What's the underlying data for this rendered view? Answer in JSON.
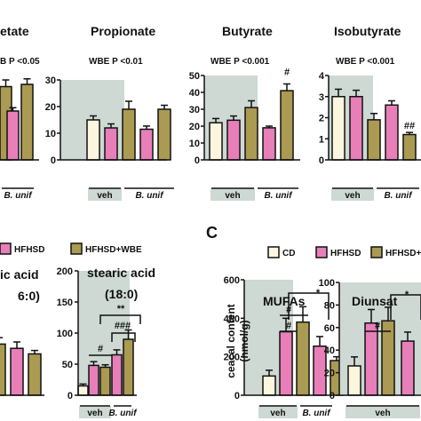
{
  "colors": {
    "CD": "#fcf6de",
    "HFHSD": "#e87fb9",
    "HFHSD+WBE": "#aa9a52",
    "shade": "#cdd9d2",
    "outline": "#111111"
  },
  "legend": {
    "items": [
      "CD",
      "HFHSD",
      "HFHSD+WBE"
    ]
  },
  "panel_c_label": "C",
  "group_labels": {
    "veh": "veh",
    "bunif": "B. unif"
  },
  "ylabel_c": {
    "line1": "ceacal content",
    "line2": "(nmol/g)"
  },
  "chart_data": [
    {
      "type": "bar",
      "title": "etate",
      "test_label": "B P <0.05",
      "ylim": [
        0,
        40
      ],
      "yticks": [],
      "categories": [
        "CD veh",
        "HFHSD veh",
        "HFHSD+WBE veh",
        "HFHSD B. unif",
        "HFHSD+WBE B. unif"
      ],
      "values": [
        32,
        30,
        33,
        22,
        34
      ],
      "errors": [
        3,
        2,
        3,
        1.5,
        2.5
      ],
      "annotations": []
    },
    {
      "type": "bar",
      "title": "Propionate",
      "test_label": "WBE P <0.01",
      "ylim": [
        0,
        30
      ],
      "yticks": [
        0,
        10,
        20,
        30
      ],
      "categories": [
        "CD veh",
        "HFHSD veh",
        "HFHSD+WBE veh",
        "HFHSD B. unif",
        "HFHSD+WBE B. unif"
      ],
      "values": [
        15,
        12,
        19,
        11.5,
        19
      ],
      "errors": [
        1.5,
        1.5,
        3,
        1.2,
        1.5
      ],
      "annotations": []
    },
    {
      "type": "bar",
      "title": "Butyrate",
      "test_label": "WBE P <0.001",
      "ylim": [
        0,
        50
      ],
      "yticks": [
        0,
        10,
        20,
        30,
        40,
        50
      ],
      "categories": [
        "CD veh",
        "HFHSD veh",
        "HFHSD+WBE veh",
        "HFHSD B. unif",
        "HFHSD+WBE B. unif"
      ],
      "values": [
        22,
        23.5,
        31,
        19,
        41
      ],
      "errors": [
        2.5,
        2.5,
        4,
        1,
        4
      ],
      "annotations": [
        {
          "bar": 4,
          "text": "#"
        }
      ]
    },
    {
      "type": "bar",
      "title": "Isobutyrate",
      "test_label": "WBE P <0.001",
      "ylim": [
        0,
        4
      ],
      "yticks": [
        0,
        1,
        2,
        3,
        4
      ],
      "categories": [
        "CD veh",
        "HFHSD veh",
        "HFHSD+WBE veh",
        "HFHSD B. unif",
        "HFHSD+WBE B. unif"
      ],
      "values": [
        3,
        3,
        1.9,
        2.6,
        1.2
      ],
      "errors": [
        0.35,
        0.3,
        0.3,
        0.2,
        0.1
      ],
      "annotations": [
        {
          "bar": 4,
          "text": "##"
        }
      ]
    },
    {
      "type": "bar",
      "title": "ic acid",
      "title2": "6:0)",
      "ylim": [
        0,
        250
      ],
      "yticks": [],
      "categories": [
        "HFHSD+WBE veh",
        "HFHSD B. unif",
        "HFHSD+WBE B. unif"
      ],
      "values": [
        120,
        110,
        97
      ],
      "errors": [
        15,
        15,
        8
      ],
      "annotations": []
    },
    {
      "type": "bar",
      "title": "stearic acid",
      "title2": "(18:0)",
      "ylim": [
        0,
        200
      ],
      "yticks": [
        0,
        50,
        100,
        150,
        200
      ],
      "categories": [
        "CD veh",
        "HFHSD veh",
        "HFHSD+WBE veh",
        "HFHSD B. unif",
        "HFHSD+WBE B. unif"
      ],
      "values": [
        15,
        48,
        45,
        65,
        90
      ],
      "errors": [
        3,
        6,
        4,
        8,
        15
      ],
      "annotations": [
        {
          "text": "#"
        },
        {
          "text": "###"
        },
        {
          "text": "**"
        }
      ]
    },
    {
      "type": "bar",
      "title": "MUFAs",
      "ylim": [
        0,
        600
      ],
      "yticks": [
        0,
        200,
        400,
        600
      ],
      "categories": [
        "CD veh",
        "HFHSD veh",
        "HFHSD+WBE veh",
        "HFHSD B. unif",
        "HFHSD+WBE B. unif"
      ],
      "values": [
        100,
        330,
        380,
        255,
        180
      ],
      "errors": [
        30,
        70,
        80,
        50,
        20
      ],
      "annotations": [
        {
          "text": "#"
        },
        {
          "text": "#"
        },
        {
          "text": "*"
        }
      ]
    },
    {
      "type": "bar",
      "title": "Diunsat",
      "ylim": [
        0,
        100
      ],
      "yticks": [
        0,
        20,
        40,
        60,
        80,
        100
      ],
      "categories": [
        "CD veh",
        "HFHSD veh",
        "HFHSD+WBE veh",
        "HFHSD B. unif"
      ],
      "values": [
        26,
        64,
        66,
        48
      ],
      "errors": [
        8,
        12,
        12,
        8
      ],
      "annotations": [
        {
          "text": "#"
        },
        {
          "text": "*"
        }
      ]
    }
  ]
}
